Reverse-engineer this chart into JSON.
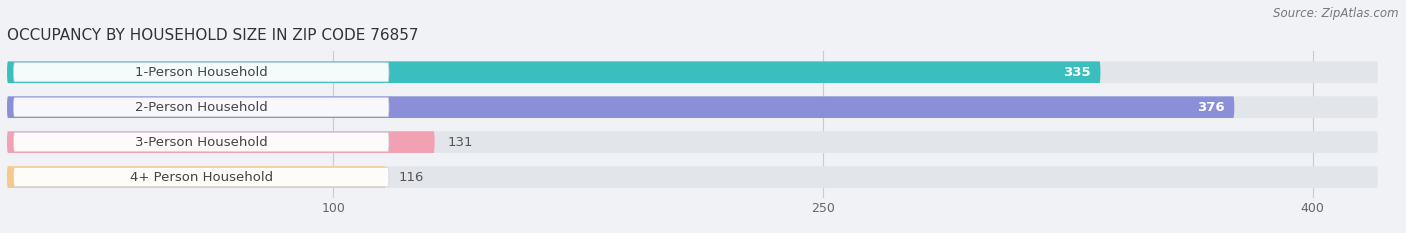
{
  "title": "OCCUPANCY BY HOUSEHOLD SIZE IN ZIP CODE 76857",
  "source": "Source: ZipAtlas.com",
  "categories": [
    "1-Person Household",
    "2-Person Household",
    "3-Person Household",
    "4+ Person Household"
  ],
  "values": [
    335,
    376,
    131,
    116
  ],
  "bar_colors": [
    "#3bbfbe",
    "#8b8fd8",
    "#f2a0b4",
    "#f5c98a"
  ],
  "x_ticks": [
    100,
    250,
    400
  ],
  "xlim_max": 420,
  "background_color": "#f0f2f5",
  "bar_bg_color": "#e2e5ea",
  "bar_height": 0.62,
  "label_fontsize": 9.5,
  "value_fontsize": 9.5,
  "title_fontsize": 11,
  "source_fontsize": 8.5,
  "white_val_threshold": 200
}
